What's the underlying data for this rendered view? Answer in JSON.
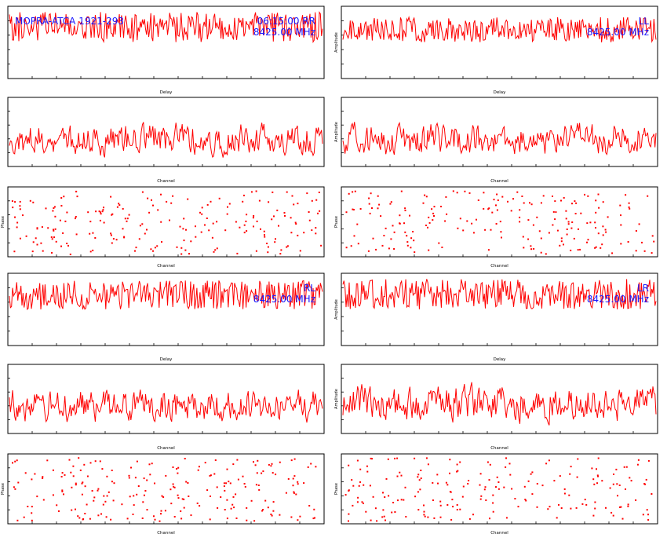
{
  "colors": {
    "trace": "#ff0000",
    "annotation": "#1a1aff",
    "frame": "#000000"
  },
  "panels": [
    {
      "id": "rr",
      "title_left": "MOPRA-ATCA 1921-293",
      "title_right": "06:15:00  RR",
      "freq": "8425.00 MHz",
      "plots": [
        {
          "type": "line",
          "xlabel": "Delay",
          "ylabel": "",
          "seed": 11,
          "ymin": 0.5,
          "ymax": 0.92
        },
        {
          "type": "line",
          "xlabel": "Channel",
          "ylabel": "",
          "seed": 12,
          "ymin": 0.08,
          "ymax": 0.72
        },
        {
          "type": "scatter",
          "xlabel": "Channel",
          "ylabel": "Phase",
          "seed": 13,
          "count": 210
        }
      ]
    },
    {
      "id": "ll",
      "title_left": "",
      "title_right": "LL",
      "freq": "8425.00 MHz",
      "plots": [
        {
          "type": "line",
          "xlabel": "Delay",
          "ylabel": "Amplitude",
          "seed": 21,
          "ymin": 0.5,
          "ymax": 0.85
        },
        {
          "type": "line",
          "xlabel": "Channel",
          "ylabel": "Amplitude",
          "seed": 22,
          "ymin": 0.08,
          "ymax": 0.72
        },
        {
          "type": "scatter",
          "xlabel": "Channel",
          "ylabel": "Phase",
          "seed": 23,
          "count": 200
        }
      ]
    },
    {
      "id": "rl",
      "title_left": "",
      "title_right": "RL",
      "freq": "8425.00 MHz",
      "plots": [
        {
          "type": "line",
          "xlabel": "Delay",
          "ylabel": "",
          "seed": 31,
          "ymin": 0.5,
          "ymax": 0.9
        },
        {
          "type": "line",
          "xlabel": "Channel",
          "ylabel": "",
          "seed": 32,
          "ymin": 0.08,
          "ymax": 0.75
        },
        {
          "type": "scatter",
          "xlabel": "Channel",
          "ylabel": "Phase",
          "seed": 33,
          "count": 220
        }
      ]
    },
    {
      "id": "lr",
      "title_left": "",
      "title_right": "LR",
      "freq": "8425.00 MHz",
      "plots": [
        {
          "type": "line",
          "xlabel": "Delay",
          "ylabel": "Amplitude",
          "seed": 41,
          "ymin": 0.5,
          "ymax": 0.92
        },
        {
          "type": "line",
          "xlabel": "Channel",
          "ylabel": "Amplitude",
          "seed": 42,
          "ymin": 0.08,
          "ymax": 0.8
        },
        {
          "type": "scatter",
          "xlabel": "Channel",
          "ylabel": "Phase",
          "seed": 43,
          "count": 200
        }
      ]
    }
  ],
  "chart_data": [
    {
      "type": "line",
      "panel": "RR",
      "xlabel": "Delay",
      "ylabel": ""
    },
    {
      "type": "line",
      "panel": "RR",
      "xlabel": "Channel",
      "ylabel": ""
    },
    {
      "type": "scatter",
      "panel": "RR",
      "xlabel": "Channel",
      "ylabel": "Phase"
    },
    {
      "type": "line",
      "panel": "LL",
      "xlabel": "Delay",
      "ylabel": "Amplitude"
    },
    {
      "type": "line",
      "panel": "LL",
      "xlabel": "Channel",
      "ylabel": "Amplitude"
    },
    {
      "type": "scatter",
      "panel": "LL",
      "xlabel": "Channel",
      "ylabel": "Phase"
    },
    {
      "type": "line",
      "panel": "RL",
      "xlabel": "Delay",
      "ylabel": ""
    },
    {
      "type": "line",
      "panel": "RL",
      "xlabel": "Channel",
      "ylabel": ""
    },
    {
      "type": "scatter",
      "panel": "RL",
      "xlabel": "Channel",
      "ylabel": "Phase"
    },
    {
      "type": "line",
      "panel": "LR",
      "xlabel": "Delay",
      "ylabel": "Amplitude"
    },
    {
      "type": "line",
      "panel": "LR",
      "xlabel": "Channel",
      "ylabel": "Amplitude"
    },
    {
      "type": "scatter",
      "panel": "LR",
      "xlabel": "Channel",
      "ylabel": "Phase"
    }
  ]
}
